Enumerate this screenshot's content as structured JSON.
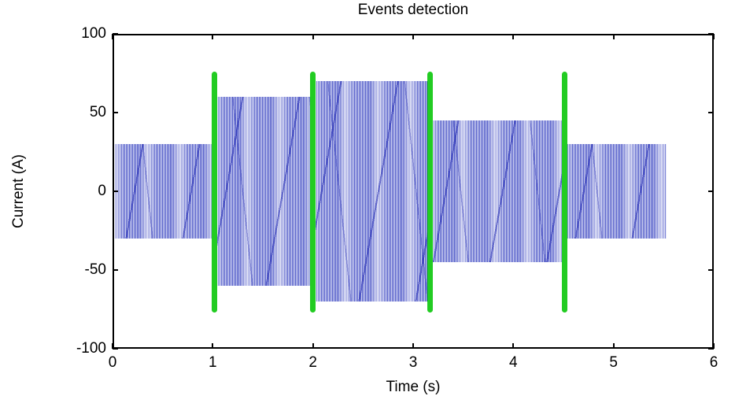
{
  "chart_data": {
    "type": "line",
    "title": "Events detection",
    "xlabel": "Time (s)",
    "ylabel": "Current (A)",
    "xlim": [
      0,
      6
    ],
    "ylim": [
      -100,
      100
    ],
    "xticks": [
      0,
      1,
      2,
      3,
      4,
      5,
      6
    ],
    "yticks": [
      100,
      50,
      0,
      -50,
      -100
    ],
    "grid": false,
    "legend": null,
    "signal": {
      "name": "current-waveform",
      "waveform": "dense high-frequency AC sinusoid drawn as solid oscillation band",
      "color": "#4a54c6",
      "color_light": "#dde0f6",
      "color_accent": "#1a22b0",
      "segments": [
        {
          "t_start": 0.02,
          "t_end": 1.02,
          "amplitude_A": 30
        },
        {
          "t_start": 1.02,
          "t_end": 2.0,
          "amplitude_A": 60
        },
        {
          "t_start": 2.0,
          "t_end": 3.17,
          "amplitude_A": 70
        },
        {
          "t_start": 3.17,
          "t_end": 4.51,
          "amplitude_A": 45
        },
        {
          "t_start": 4.51,
          "t_end": 5.53,
          "amplitude_A": 30
        }
      ]
    },
    "events": {
      "name": "detected-event-markers",
      "marker": "vertical-line-rounded-caps",
      "color": "#22cc22",
      "times_s": [
        1.02,
        2.0,
        3.17,
        4.51
      ],
      "y_span_A": [
        -77,
        76
      ]
    }
  }
}
